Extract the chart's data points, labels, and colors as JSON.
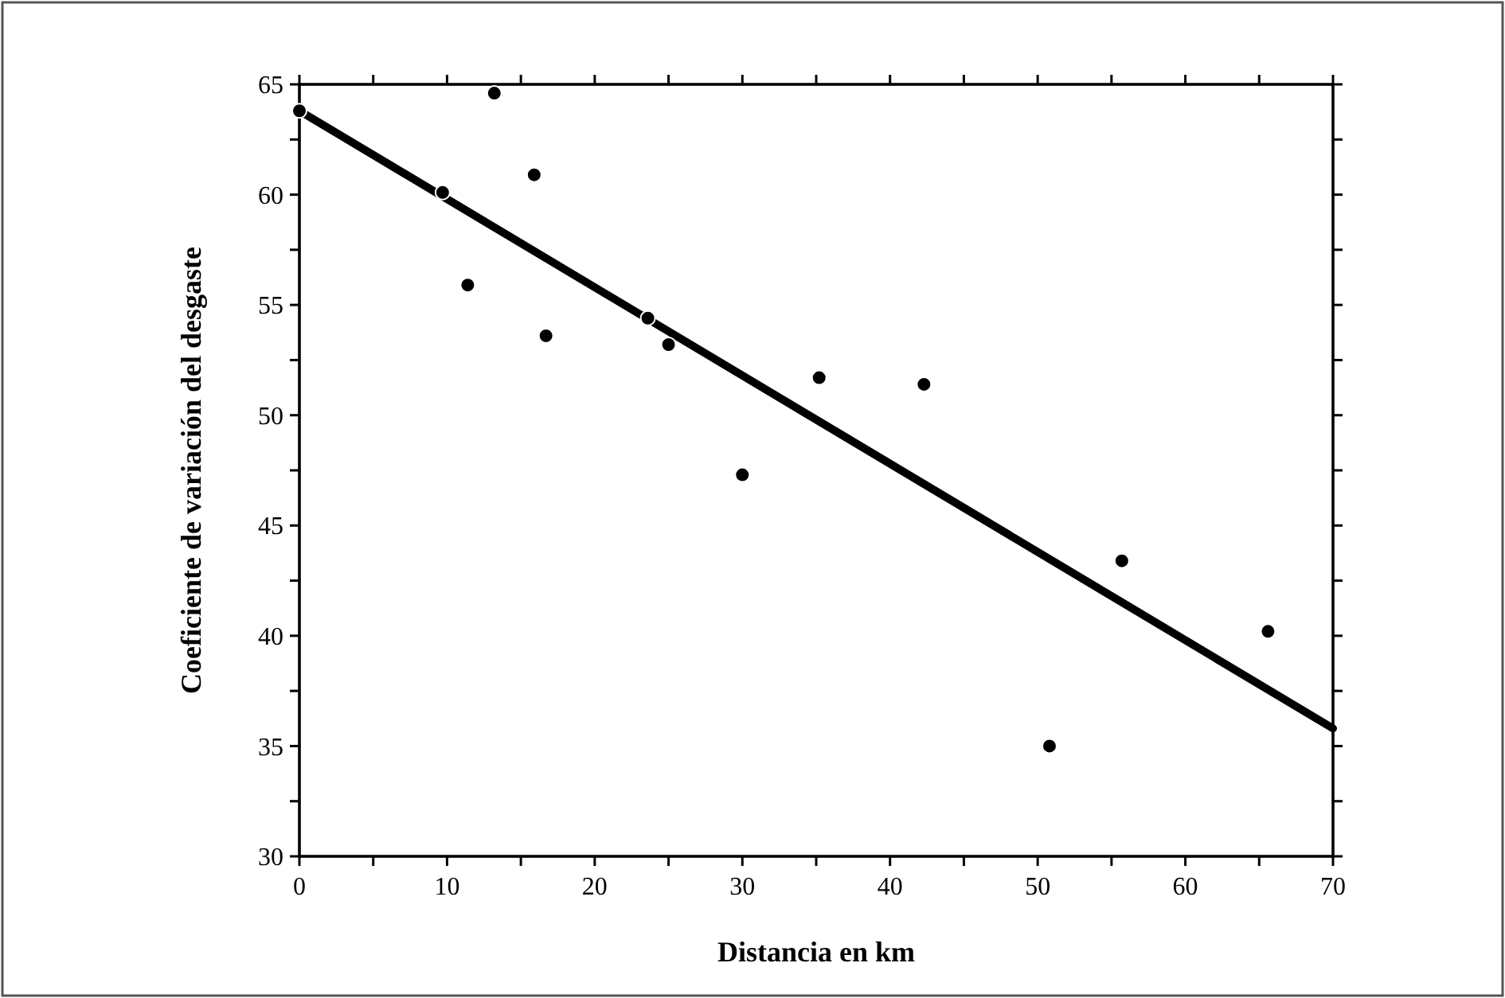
{
  "chart_data": {
    "type": "scatter",
    "xlabel": "Distancia en km",
    "ylabel": "Coeficiente de variación del desgaste",
    "xlim": [
      0,
      70
    ],
    "ylim": [
      30,
      65
    ],
    "xticks": [
      0,
      {
        "value": 5,
        "label": null
      },
      10,
      {
        "value": 15,
        "label": null
      },
      20,
      {
        "value": 25,
        "label": null
      },
      30,
      {
        "value": 35,
        "label": null
      },
      40,
      {
        "value": 45,
        "label": null
      },
      50,
      {
        "value": 55,
        "label": null
      },
      60,
      {
        "value": 65,
        "label": null
      },
      70
    ],
    "yticks": [
      30,
      {
        "value": 32.5,
        "label": null
      },
      35,
      {
        "value": 37.5,
        "label": null
      },
      40,
      {
        "value": 42.5,
        "label": null
      },
      45,
      {
        "value": 47.5,
        "label": null
      },
      50,
      {
        "value": 52.5,
        "label": null
      },
      55,
      {
        "value": 57.5,
        "label": null
      },
      60,
      {
        "value": 62.5,
        "label": null
      },
      65
    ],
    "grid": false,
    "series": [
      {
        "type": "line",
        "color": "#000000",
        "marker": "none",
        "line_style": "solid",
        "x": [
          0,
          70
        ],
        "values": [
          63.8,
          35.8
        ]
      },
      {
        "color": "#000000",
        "marker": "circle",
        "x": [
          0,
          9.7,
          11.4,
          13.2,
          15.9,
          16.7,
          23.6,
          25.0,
          30.0,
          35.2,
          42.3,
          50.8,
          55.7,
          65.6
        ],
        "values": [
          63.8,
          60.1,
          55.9,
          64.6,
          60.9,
          53.6,
          54.4,
          53.2,
          47.3,
          51.7,
          51.4,
          35.0,
          43.4,
          40.2
        ]
      }
    ]
  }
}
